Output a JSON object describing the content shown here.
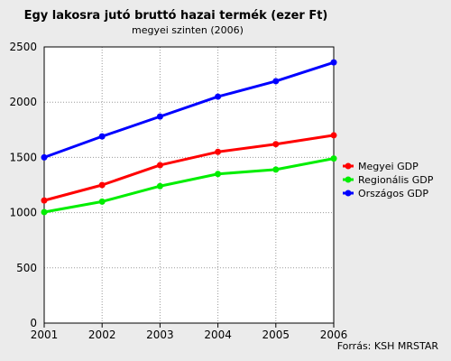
{
  "chart_data": {
    "type": "line",
    "title": "Egy lakosra jutó bruttó hazai termék (ezer Ft)",
    "subtitle": "megyei szinten (2006)",
    "x": [
      "2001",
      "2002",
      "2003",
      "2004",
      "2005",
      "2006"
    ],
    "y_ticks": [
      "0",
      "500",
      "1000",
      "1500",
      "2000",
      "2500"
    ],
    "ylim": [
      0,
      2500
    ],
    "grid": true,
    "legend_position": "right",
    "series": [
      {
        "name": "Megyei GDP",
        "color": "#ff0000",
        "values": [
          1110,
          1250,
          1430,
          1550,
          1620,
          1700
        ]
      },
      {
        "name": "Regionális GDP",
        "color": "#00ee00",
        "values": [
          1005,
          1100,
          1240,
          1350,
          1390,
          1490
        ]
      },
      {
        "name": "Országos GDP",
        "color": "#0000ff",
        "values": [
          1500,
          1690,
          1870,
          2050,
          2190,
          2360
        ]
      }
    ],
    "source": "Forrás: KSH MRSTAR"
  }
}
